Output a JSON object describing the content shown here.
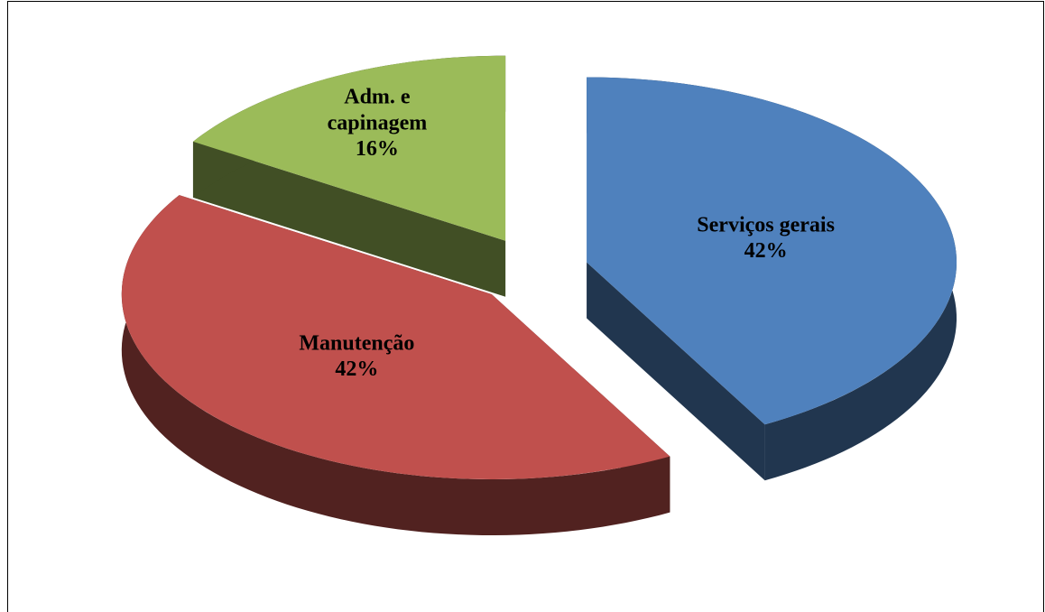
{
  "chart_data": {
    "type": "pie3d",
    "categories": [
      "Serviços gerais",
      "Manutenção",
      "Adm. e capinagem"
    ],
    "values": [
      42,
      42,
      16
    ],
    "value_labels": [
      "42%",
      "42%",
      "16%"
    ],
    "colors": [
      "#4f81bd",
      "#c0504d",
      "#9bbb59"
    ]
  }
}
